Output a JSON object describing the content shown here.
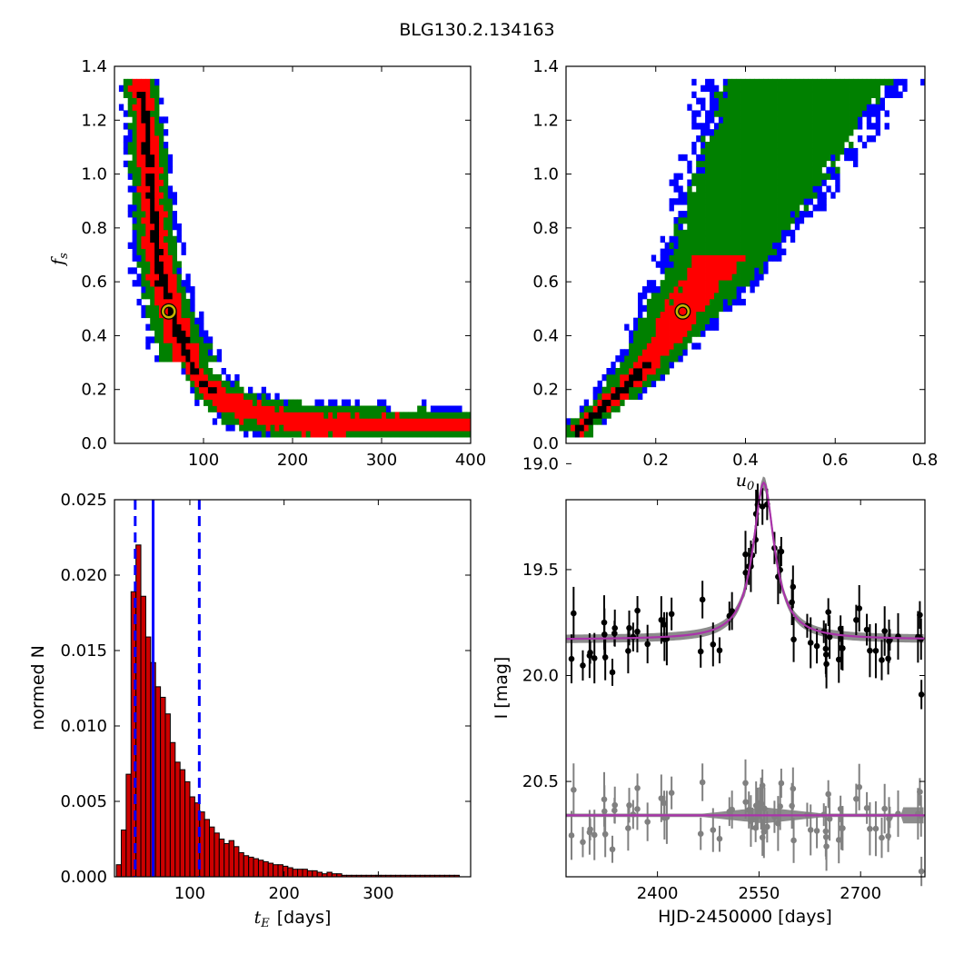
{
  "figure": {
    "title": "BLG130.2.134163"
  },
  "chart_data": [
    {
      "id": "tE_vs_fs",
      "type": "heatmap",
      "title": "",
      "xlabel": "",
      "ylabel_math": "f",
      "ylabel_sub": "s",
      "xlim": [
        0,
        400
      ],
      "ylim": [
        0.0,
        1.4
      ],
      "xticks": [
        "100",
        "200",
        "300",
        "400"
      ],
      "yticks": [
        "0.0",
        "0.2",
        "0.4",
        "0.6",
        "0.8",
        "1.0",
        "1.2",
        "1.4"
      ],
      "levels": [
        {
          "name": "3-sigma",
          "color": "#0000ff"
        },
        {
          "name": "2-sigma",
          "color": "#008000"
        },
        {
          "name": "1-sigma",
          "color": "#ff0000"
        },
        {
          "name": "peak",
          "color": "#000000"
        }
      ],
      "ridge": [
        [
          28,
          1.34
        ],
        [
          35,
          1.2
        ],
        [
          40,
          1.0
        ],
        [
          45,
          0.8
        ],
        [
          52,
          0.62
        ],
        [
          62,
          0.5
        ],
        [
          72,
          0.4
        ],
        [
          85,
          0.3
        ],
        [
          100,
          0.22
        ],
        [
          120,
          0.17
        ],
        [
          150,
          0.12
        ],
        [
          200,
          0.08
        ],
        [
          260,
          0.065
        ],
        [
          330,
          0.055
        ],
        [
          395,
          0.05
        ]
      ],
      "best_fit": {
        "x": 61,
        "y": 0.49
      }
    },
    {
      "id": "u0_vs_fs",
      "type": "heatmap",
      "title": "",
      "xlabel_math": "u",
      "xlabel_sub": "0",
      "xlim": [
        0.0,
        0.8
      ],
      "ylim": [
        0.0,
        1.4
      ],
      "xticks": [
        "0.2",
        "0.4",
        "0.6",
        "0.8"
      ],
      "yticks": [
        "0.0",
        "0.2",
        "0.4",
        "0.6",
        "0.8",
        "1.0",
        "1.2",
        "1.4"
      ],
      "levels": [
        {
          "name": "3-sigma",
          "color": "#0000ff"
        },
        {
          "name": "2-sigma",
          "color": "#008000"
        },
        {
          "name": "1-sigma",
          "color": "#ff0000"
        },
        {
          "name": "peak",
          "color": "#000000"
        }
      ],
      "ridge": [
        [
          0.03,
          0.06
        ],
        [
          0.08,
          0.13
        ],
        [
          0.14,
          0.22
        ],
        [
          0.2,
          0.34
        ],
        [
          0.26,
          0.49
        ],
        [
          0.33,
          0.66
        ],
        [
          0.4,
          0.88
        ],
        [
          0.47,
          1.1
        ],
        [
          0.52,
          1.3
        ],
        [
          0.54,
          1.34
        ]
      ],
      "best_fit": {
        "x": 0.26,
        "y": 0.49
      }
    },
    {
      "id": "tE_histogram",
      "type": "bar",
      "title": "",
      "xlabel_math": "t",
      "xlabel_sub": "E",
      "xlabel_text": "[days]",
      "ylabel": "normed N",
      "xlim": [
        20,
        398
      ],
      "ylim": [
        0.0,
        0.025
      ],
      "xticks": [
        "100",
        "200",
        "300"
      ],
      "yticks": [
        "0.000",
        "0.005",
        "0.010",
        "0.015",
        "0.020",
        "0.025"
      ],
      "bin_start": 22,
      "bin_width": 5.2,
      "values": [
        0.0008,
        0.0031,
        0.0068,
        0.0189,
        0.022,
        0.0186,
        0.0159,
        0.0142,
        0.0126,
        0.0119,
        0.0108,
        0.0089,
        0.0076,
        0.0071,
        0.0063,
        0.0053,
        0.0049,
        0.0043,
        0.0038,
        0.0033,
        0.0029,
        0.0025,
        0.0022,
        0.0024,
        0.002,
        0.0016,
        0.0014,
        0.0013,
        0.0012,
        0.0011,
        0.001,
        0.0009,
        0.0008,
        0.0008,
        0.0007,
        0.0006,
        0.0005,
        0.0005,
        0.0005,
        0.0004,
        0.0004,
        0.0003,
        0.0002,
        0.0003,
        0.0002,
        0.0002,
        0.0001,
        0.0001,
        0.0001,
        0.0001,
        0.0001,
        0.0001,
        0.0001,
        0.0001,
        0.0001,
        0.0001,
        0.0001,
        0.0001,
        0.0001,
        0.0001,
        0.0001,
        0.0001,
        0.0001,
        0.0001,
        0.0001,
        0.0001,
        0.0001,
        0.0001,
        0.0001,
        0.0001
      ],
      "bar_color": "#cc0000",
      "median_line": 61,
      "interval_lines": [
        42,
        110
      ],
      "line_color": "#0000ff"
    },
    {
      "id": "light_curve",
      "type": "scatter",
      "title": "",
      "xlabel": "HJD-2450000 [days]",
      "ylabel": "I [mag]",
      "xlim": [
        2265,
        2795
      ],
      "ylim": [
        20.95,
        19.17
      ],
      "xticks": [
        "2400",
        "2550",
        "2700"
      ],
      "yticks": [
        "19.0",
        "19.5",
        "20.0",
        "20.5"
      ],
      "model": {
        "baseline": 19.83,
        "peak_mag": 19.09,
        "t0": 2557,
        "tE": 28,
        "color": "#aa33aa"
      },
      "residual_offset": 20.66,
      "data_color": "#000000",
      "residual_color": "#808080"
    }
  ]
}
